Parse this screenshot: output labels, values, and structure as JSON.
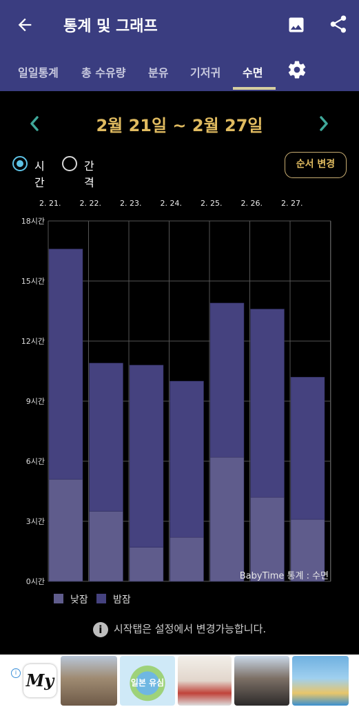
{
  "header": {
    "title": "통계 및 그래프"
  },
  "tabs": [
    {
      "label": "일일통계",
      "active": false
    },
    {
      "label": "총 수유량",
      "active": false
    },
    {
      "label": "분유",
      "active": false
    },
    {
      "label": "기저귀",
      "active": false
    },
    {
      "label": "수면",
      "active": true
    }
  ],
  "date_range": "2월 21일 ~ 2월 27일",
  "view_mode": {
    "options": [
      "시간",
      "간격"
    ],
    "selected": "시간"
  },
  "order_button": "순서 변경",
  "chart_data": {
    "type": "bar",
    "stacked": true,
    "categories": [
      "2. 21.",
      "2. 22.",
      "2. 23.",
      "2. 24.",
      "2. 25.",
      "2. 26.",
      "2. 27."
    ],
    "series": [
      {
        "name": "낮잠",
        "color": "#5f5c8c",
        "values": [
          5.1,
          3.5,
          1.7,
          2.2,
          6.2,
          4.2,
          3.1
        ]
      },
      {
        "name": "밤잠",
        "color": "#45427f",
        "values": [
          11.5,
          7.4,
          9.1,
          7.8,
          7.7,
          9.4,
          7.1
        ]
      }
    ],
    "ylim": [
      0,
      18
    ],
    "yticks": [
      "0시간",
      "3시간",
      "6시간",
      "9시간",
      "12시간",
      "15시간",
      "18시간"
    ],
    "grid": true,
    "watermark": "BabyTime 통계 : 수면"
  },
  "footer_info": "시작탭은 설정에서 변경가능합니다.",
  "ad": {
    "logo_text": "My",
    "badge_text": "일본 유심"
  }
}
